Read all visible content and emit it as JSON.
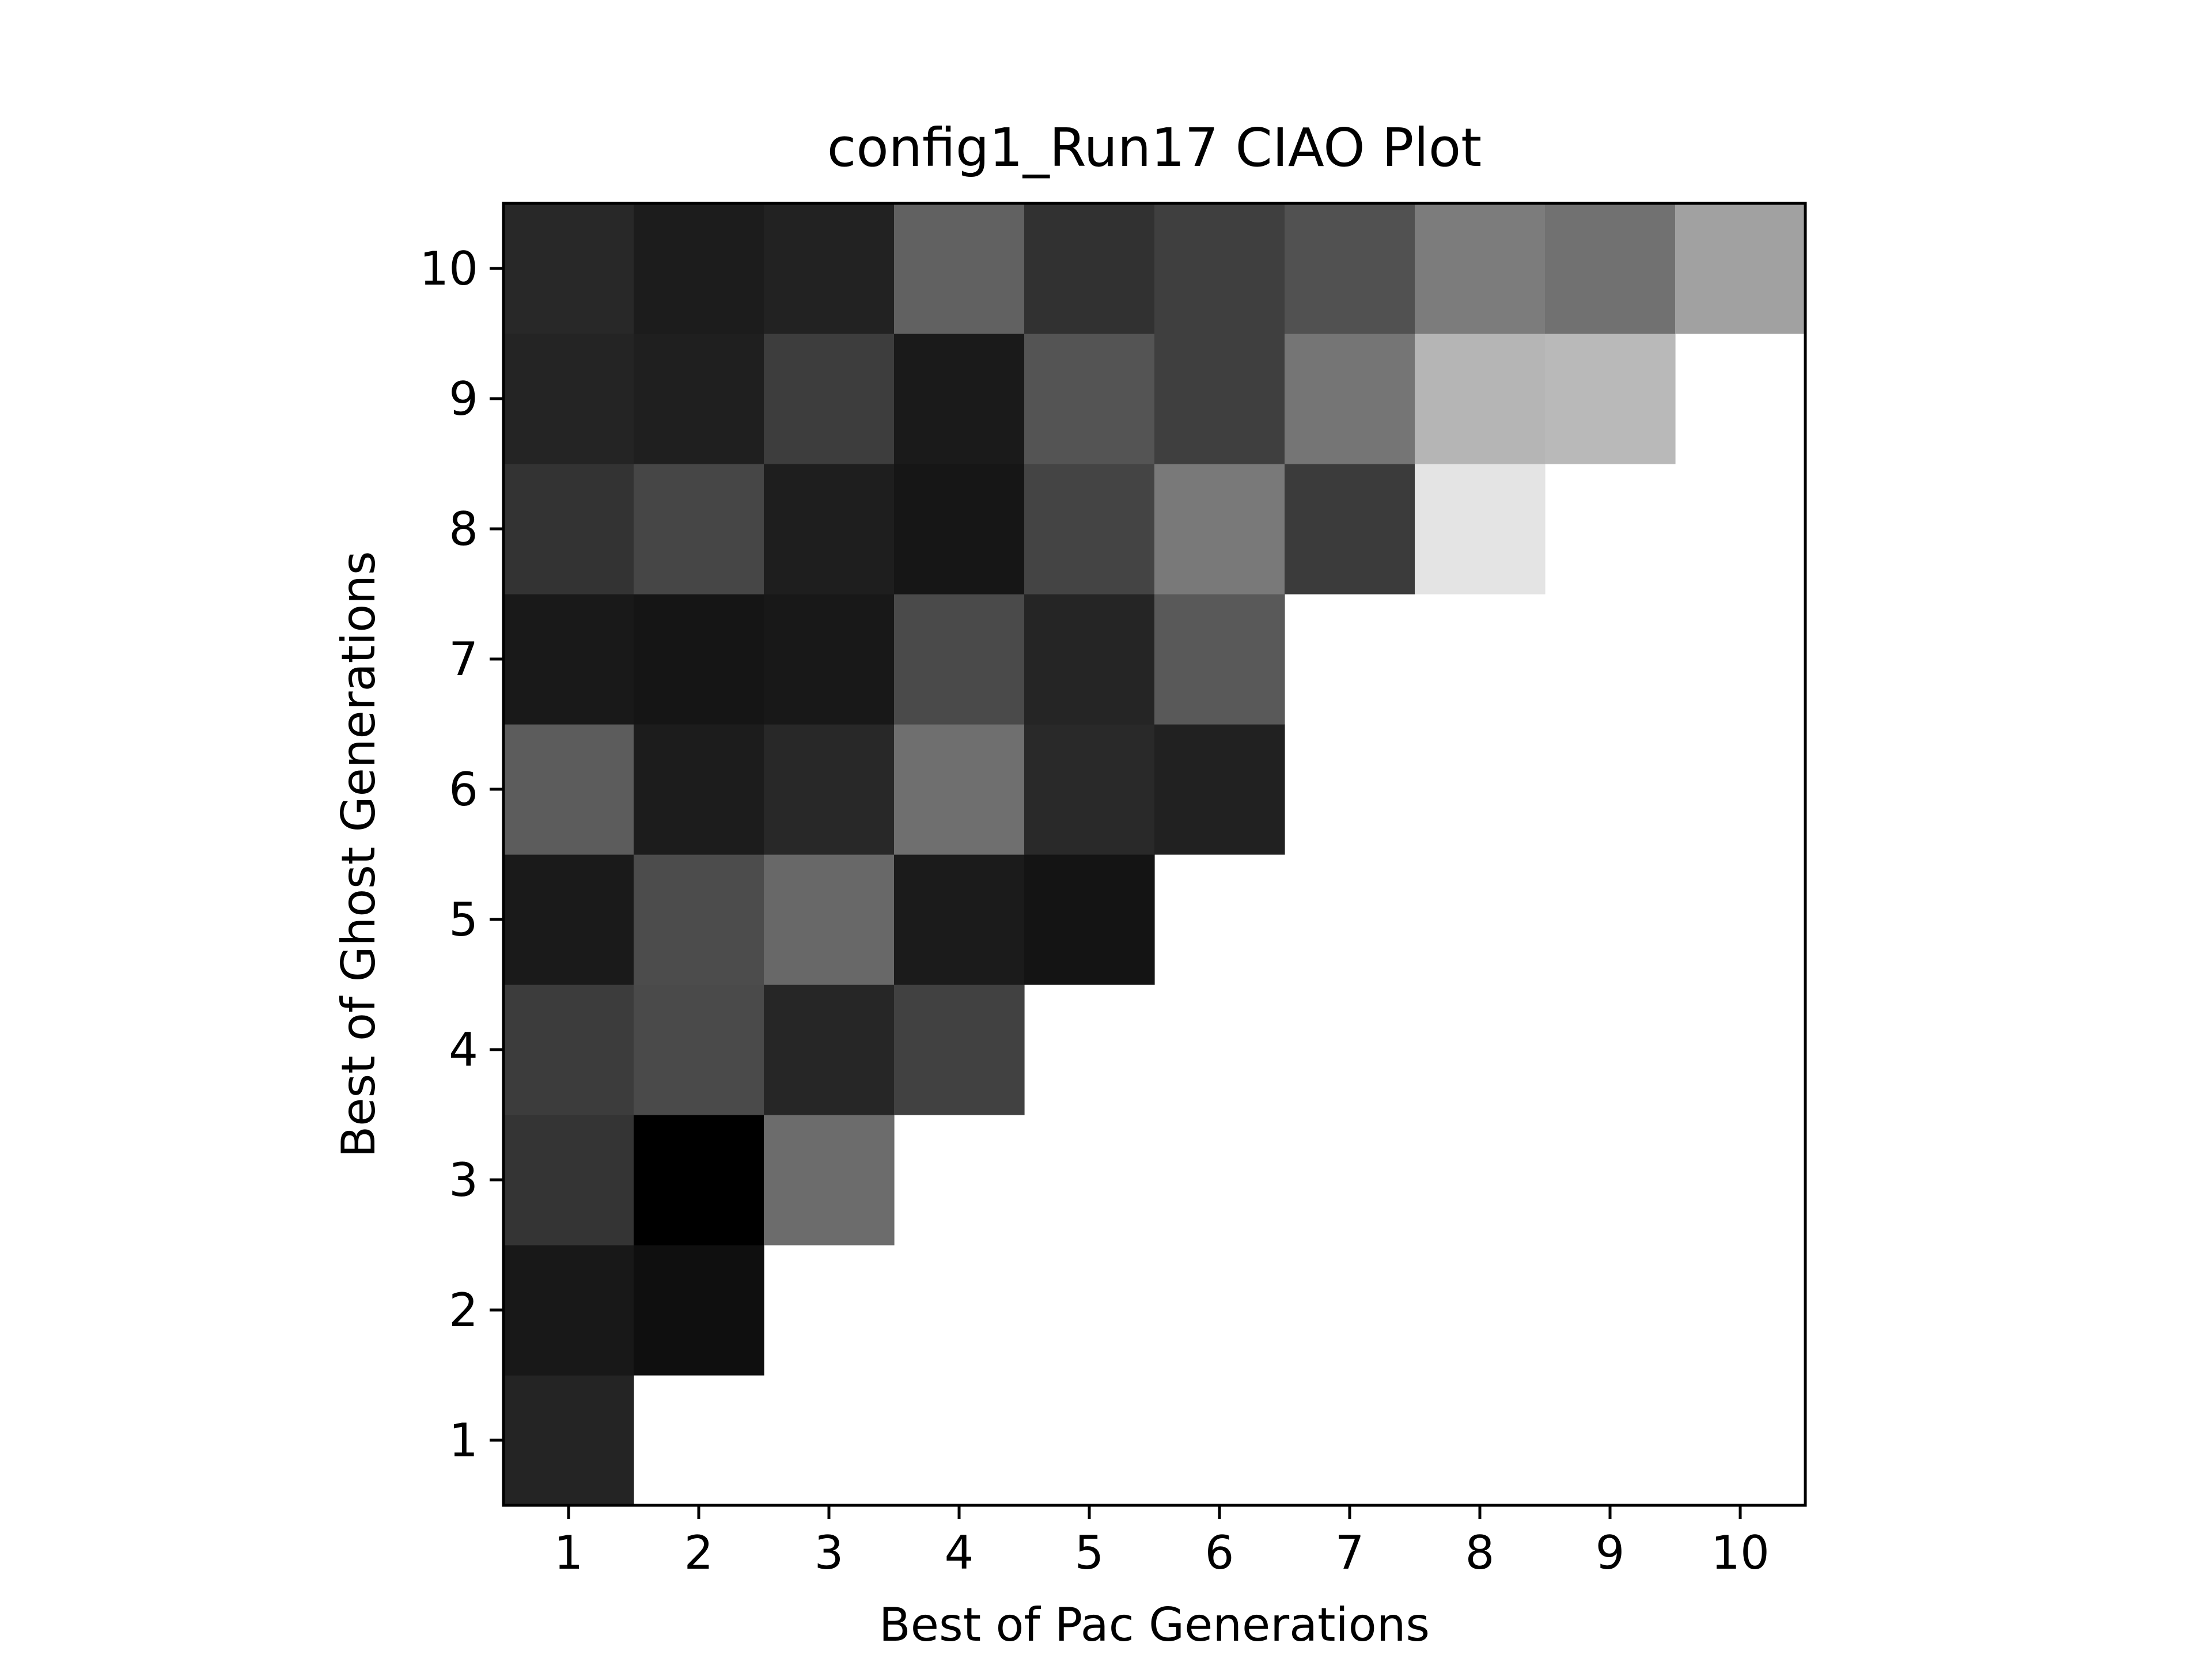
{
  "chart_data": {
    "type": "heatmap",
    "title": "config1_Run17 CIAO Plot",
    "xlabel": "Best of Pac Generations",
    "ylabel": "Best of Ghost Generations",
    "x_ticks": [
      "1",
      "2",
      "3",
      "4",
      "5",
      "6",
      "7",
      "8",
      "9",
      "10"
    ],
    "y_ticks": [
      "1",
      "2",
      "3",
      "4",
      "5",
      "6",
      "7",
      "8",
      "9",
      "10"
    ],
    "xlim": [
      0.5,
      10.5
    ],
    "ylim": [
      0.5,
      10.5
    ],
    "colormap": "grayscale (black = low, white = high)",
    "grid": false,
    "legend": "none",
    "value_scale": "gray level 0 (black) to 255 (white)",
    "cells_comment_free": true,
    "rows": [
      {
        "y": 1,
        "values": [
          36,
          null,
          null,
          null,
          null,
          null,
          null,
          null,
          null,
          null
        ]
      },
      {
        "y": 2,
        "values": [
          24,
          15,
          null,
          null,
          null,
          null,
          null,
          null,
          null,
          null
        ]
      },
      {
        "y": 3,
        "values": [
          52,
          0,
          108,
          null,
          null,
          null,
          null,
          null,
          null,
          null
        ]
      },
      {
        "y": 4,
        "values": [
          60,
          74,
          38,
          65,
          null,
          null,
          null,
          null,
          null,
          null
        ]
      },
      {
        "y": 5,
        "values": [
          26,
          76,
          104,
          27,
          20,
          null,
          null,
          null,
          null,
          null
        ]
      },
      {
        "y": 6,
        "values": [
          92,
          28,
          40,
          111,
          41,
          33,
          null,
          null,
          null,
          null
        ]
      },
      {
        "y": 7,
        "values": [
          25,
          21,
          24,
          74,
          37,
          89,
          null,
          null,
          null,
          null
        ]
      },
      {
        "y": 8,
        "values": [
          51,
          70,
          30,
          22,
          68,
          121,
          59,
          228,
          null,
          null
        ]
      },
      {
        "y": 9,
        "values": [
          36,
          31,
          61,
          26,
          84,
          63,
          117,
          181,
          185,
          null
        ]
      },
      {
        "y": 10,
        "values": [
          40,
          28,
          34,
          97,
          49,
          63,
          81,
          124,
          113,
          161
        ]
      }
    ]
  }
}
